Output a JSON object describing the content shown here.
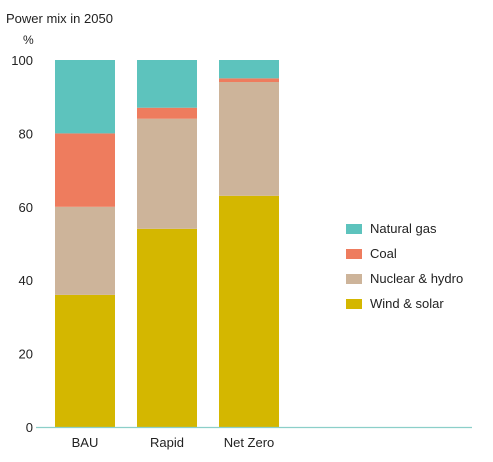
{
  "title": "Power mix in 2050",
  "unit_label": "%",
  "colors": {
    "wind_solar": "#D4B700",
    "nuclear_hydro": "#CDB49A",
    "coal": "#EE7C5E",
    "natural_gas": "#5DC3BD",
    "axis": "#8ccfc9"
  },
  "chart_data": {
    "type": "bar",
    "stacked": true,
    "title": "Power mix in 2050",
    "ylabel": "%",
    "ylim": [
      0,
      100
    ],
    "yticks": [
      0,
      20,
      40,
      60,
      80,
      100
    ],
    "categories": [
      "BAU",
      "Rapid",
      "Net Zero"
    ],
    "series": [
      {
        "name": "Wind & solar",
        "key": "wind_solar",
        "values": [
          36,
          54,
          63
        ]
      },
      {
        "name": "Nuclear & hydro",
        "key": "nuclear_hydro",
        "values": [
          24,
          30,
          31
        ]
      },
      {
        "name": "Coal",
        "key": "coal",
        "values": [
          20,
          3,
          1
        ]
      },
      {
        "name": "Natural gas",
        "key": "natural_gas",
        "values": [
          20,
          13,
          5
        ]
      }
    ],
    "legend_order": [
      "Natural gas",
      "Coal",
      "Nuclear & hydro",
      "Wind & solar"
    ],
    "legend_position": "right",
    "grid": false
  }
}
